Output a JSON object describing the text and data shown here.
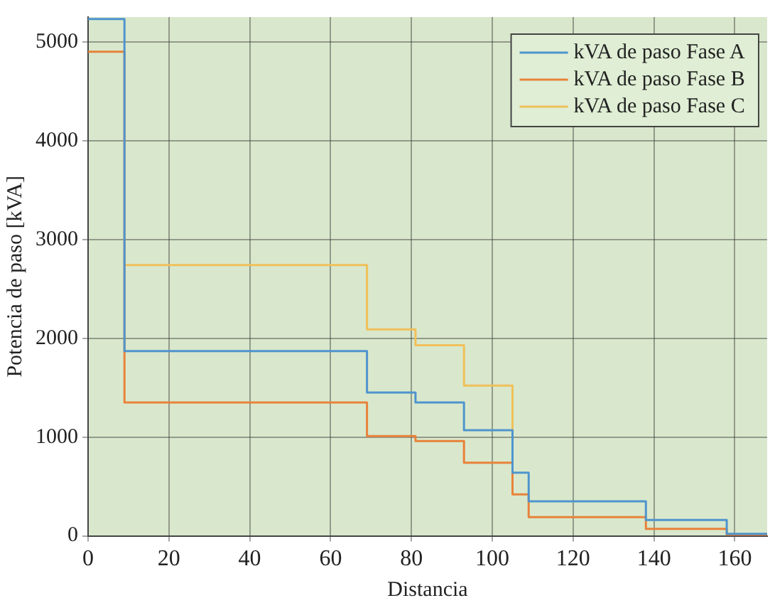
{
  "chart_data": {
    "type": "step",
    "xlabel": "Distancia",
    "ylabel": "Potencia de paso [kVA]",
    "x": [
      0,
      9,
      69,
      81,
      93,
      105,
      109,
      138,
      158,
      168
    ],
    "series": [
      {
        "name": "kVA de paso Fase A",
        "color": "#4f94cd",
        "values": [
          5230,
          1870,
          1450,
          1350,
          1070,
          640,
          350,
          160,
          20,
          20
        ]
      },
      {
        "name": "kVA de paso Fase B",
        "color": "#e8823a",
        "values": [
          4900,
          1350,
          1010,
          960,
          740,
          420,
          190,
          70,
          10,
          10
        ]
      },
      {
        "name": "kVA de paso Fase C",
        "color": "#f0c05a",
        "values": [
          null,
          2740,
          2090,
          1930,
          1520,
          420,
          null,
          null,
          null,
          null
        ]
      }
    ],
    "xlim": [
      0,
      168
    ],
    "xticks": [
      0,
      20,
      40,
      60,
      80,
      100,
      120,
      140,
      160
    ],
    "ylim": [
      0,
      5250
    ],
    "yticks": [
      0,
      1000,
      2000,
      3000,
      4000,
      5000
    ],
    "grid": true,
    "legend": "top right",
    "line_style": "solid",
    "marker": "none"
  }
}
